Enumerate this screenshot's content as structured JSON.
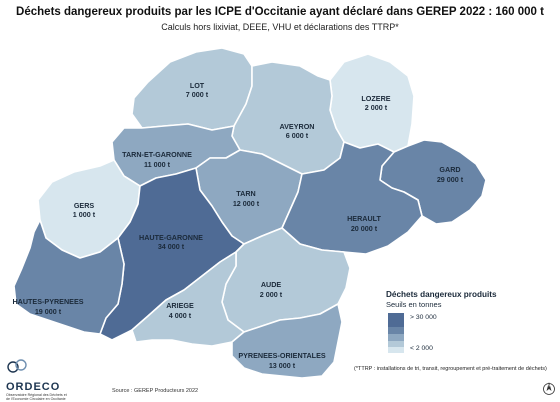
{
  "title": "Déchets dangereux produits par les ICPE d'Occitanie ayant déclaré dans GEREP 2022 : 160 000 t",
  "subtitle": "Calculs hors lixiviat, DEEE, VHU et déclarations des TTRP*",
  "colors": {
    "class1": "#d7e6ee",
    "class2": "#b3c9d8",
    "class3": "#8ea8c1",
    "class4": "#6985a7",
    "class5": "#4f6b95",
    "border": "#ffffff"
  },
  "departments": [
    {
      "id": "lot",
      "name": "LOT",
      "value": "7 000 t",
      "class": "class2"
    },
    {
      "id": "lozere",
      "name": "LOZERE",
      "value": "2 000 t",
      "class": "class1"
    },
    {
      "id": "aveyron",
      "name": "AVEYRON",
      "value": "6 000 t",
      "class": "class2"
    },
    {
      "id": "tarn-et-garonne",
      "name": "TARN-ET-GARONNE",
      "value": "11 000 t",
      "class": "class3"
    },
    {
      "id": "gard",
      "name": "GARD",
      "value": "29 000 t",
      "class": "class4"
    },
    {
      "id": "gers",
      "name": "GERS",
      "value": "1 000 t",
      "class": "class1"
    },
    {
      "id": "tarn",
      "name": "TARN",
      "value": "12 000 t",
      "class": "class3"
    },
    {
      "id": "herault",
      "name": "HERAULT",
      "value": "20 000 t",
      "class": "class4"
    },
    {
      "id": "haute-garonne",
      "name": "HAUTE-GARONNE",
      "value": "34 000 t",
      "class": "class5"
    },
    {
      "id": "aude",
      "name": "AUDE",
      "value": "2 000 t",
      "class": "class2"
    },
    {
      "id": "hautes-pyrenees",
      "name": "HAUTES-PYRENEES",
      "value": "19 000 t",
      "class": "class4"
    },
    {
      "id": "ariege",
      "name": "ARIEGE",
      "value": "4 000 t",
      "class": "class2"
    },
    {
      "id": "pyrenees-orientales",
      "name": "PYRENEES-ORIENTALES",
      "value": "13 000 t",
      "class": "class3"
    }
  ],
  "legend": {
    "title": "Déchets dangereux produits",
    "subtitle": "Seuils en tonnes",
    "high_label": "> 30 000",
    "low_label": "< 2 000"
  },
  "footnote": "(*TTRP : installations de tri, transit, regroupement et pré-traitement de déchets)",
  "logo": {
    "name": "ORDECO",
    "line1": "Observatoire Régional des Déchets et",
    "line2": "de l'Economie Circulaire en Occitanie"
  },
  "source": "Source : GEREP Producteurs 2022",
  "north_label": "N"
}
